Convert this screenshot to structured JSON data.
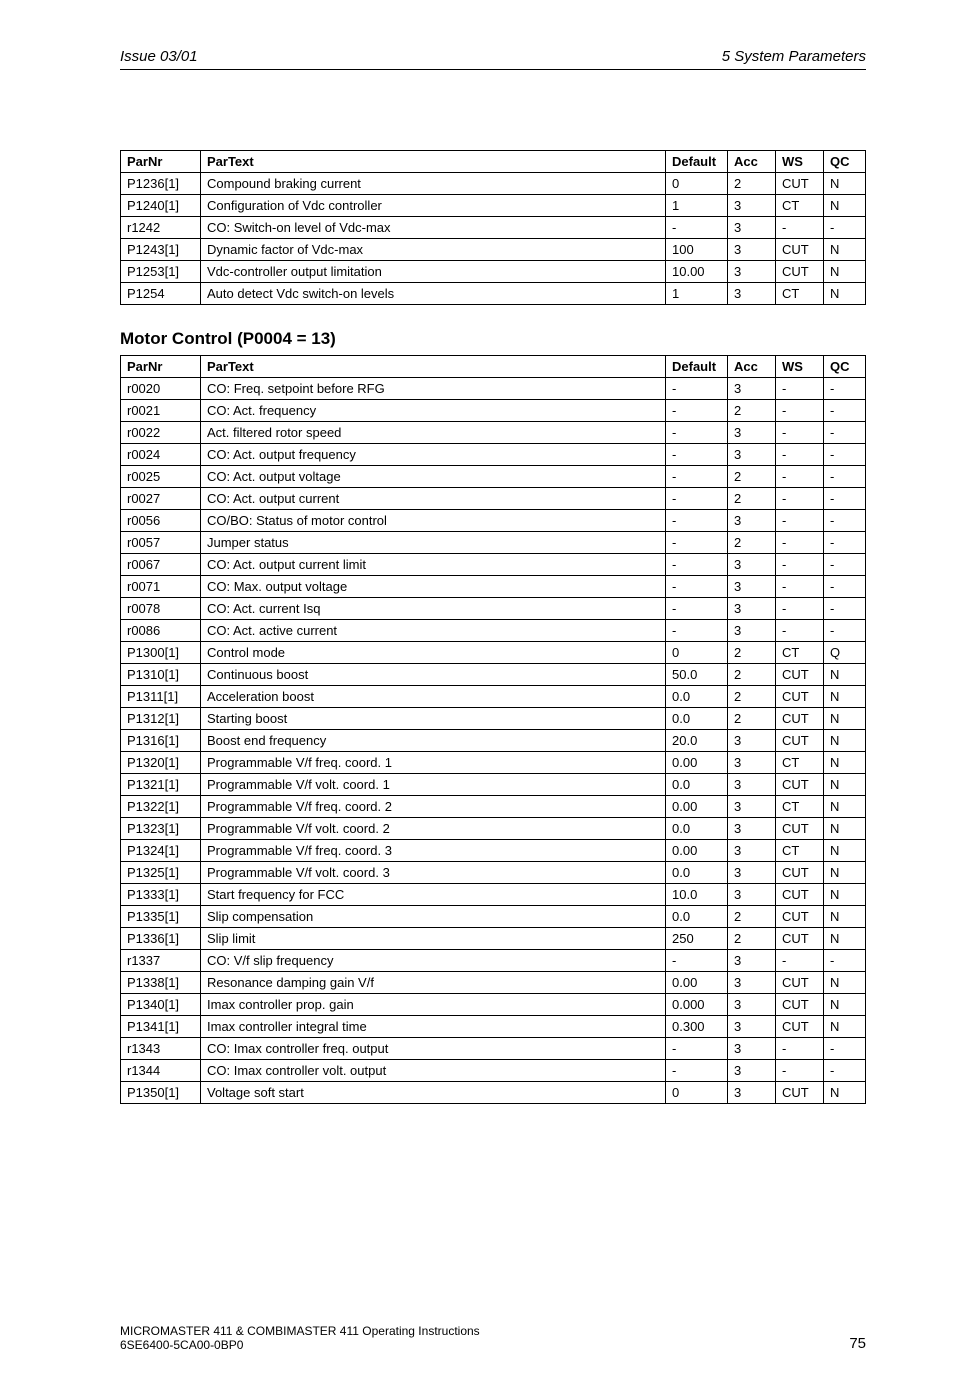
{
  "header": {
    "left": "Issue 03/01",
    "right": "5  System Parameters"
  },
  "table1": {
    "columns": [
      "ParNr",
      "ParText",
      "Default",
      "Acc",
      "WS",
      "QC"
    ],
    "rows": [
      [
        "P1236[1]",
        "Compound braking current",
        "0",
        "2",
        "CUT",
        "N"
      ],
      [
        "P1240[1]",
        "Configuration of Vdc controller",
        "1",
        "3",
        "CT",
        "N"
      ],
      [
        "r1242",
        "CO: Switch-on level of Vdc-max",
        "-",
        "3",
        "-",
        "-"
      ],
      [
        "P1243[1]",
        "Dynamic factor of Vdc-max",
        "100",
        "3",
        "CUT",
        "N"
      ],
      [
        "P1253[1]",
        "Vdc-controller output limitation",
        "10.00",
        "3",
        "CUT",
        "N"
      ],
      [
        "P1254",
        "Auto detect Vdc switch-on levels",
        "1",
        "3",
        "CT",
        "N"
      ]
    ]
  },
  "section2_title": "Motor Control (P0004 = 13)",
  "table2": {
    "columns": [
      "ParNr",
      "ParText",
      "Default",
      "Acc",
      "WS",
      "QC"
    ],
    "rows": [
      [
        "r0020",
        "CO: Freq. setpoint before RFG",
        "-",
        "3",
        "-",
        "-"
      ],
      [
        "r0021",
        "CO: Act. frequency",
        "-",
        "2",
        "-",
        "-"
      ],
      [
        "r0022",
        "Act. filtered rotor speed",
        "-",
        "3",
        "-",
        "-"
      ],
      [
        "r0024",
        "CO: Act. output frequency",
        "-",
        "3",
        "-",
        "-"
      ],
      [
        "r0025",
        "CO: Act. output voltage",
        "-",
        "2",
        "-",
        "-"
      ],
      [
        "r0027",
        "CO: Act. output current",
        "-",
        "2",
        "-",
        "-"
      ],
      [
        "r0056",
        "CO/BO: Status of motor control",
        "-",
        "3",
        "-",
        "-"
      ],
      [
        "r0057",
        "Jumper status",
        "-",
        "2",
        "-",
        "-"
      ],
      [
        "r0067",
        "CO: Act. output current limit",
        "-",
        "3",
        "-",
        "-"
      ],
      [
        "r0071",
        "CO: Max. output voltage",
        "-",
        "3",
        "-",
        "-"
      ],
      [
        "r0078",
        "CO: Act. current Isq",
        "-",
        "3",
        "-",
        "-"
      ],
      [
        "r0086",
        "CO: Act. active current",
        "-",
        "3",
        "-",
        "-"
      ],
      [
        "P1300[1]",
        "Control mode",
        "0",
        "2",
        "CT",
        "Q"
      ],
      [
        "P1310[1]",
        "Continuous boost",
        "50.0",
        "2",
        "CUT",
        "N"
      ],
      [
        "P1311[1]",
        "Acceleration boost",
        "0.0",
        "2",
        "CUT",
        "N"
      ],
      [
        "P1312[1]",
        "Starting boost",
        "0.0",
        "2",
        "CUT",
        "N"
      ],
      [
        "P1316[1]",
        "Boost end frequency",
        "20.0",
        "3",
        "CUT",
        "N"
      ],
      [
        "P1320[1]",
        "Programmable V/f freq. coord. 1",
        "0.00",
        "3",
        "CT",
        "N"
      ],
      [
        "P1321[1]",
        "Programmable V/f volt. coord. 1",
        "0.0",
        "3",
        "CUT",
        "N"
      ],
      [
        "P1322[1]",
        "Programmable V/f freq. coord. 2",
        "0.00",
        "3",
        "CT",
        "N"
      ],
      [
        "P1323[1]",
        "Programmable V/f volt. coord. 2",
        "0.0",
        "3",
        "CUT",
        "N"
      ],
      [
        "P1324[1]",
        "Programmable V/f freq. coord. 3",
        "0.00",
        "3",
        "CT",
        "N"
      ],
      [
        "P1325[1]",
        "Programmable V/f volt. coord. 3",
        "0.0",
        "3",
        "CUT",
        "N"
      ],
      [
        "P1333[1]",
        "Start frequency for FCC",
        "10.0",
        "3",
        "CUT",
        "N"
      ],
      [
        "P1335[1]",
        "Slip compensation",
        "0.0",
        "2",
        "CUT",
        "N"
      ],
      [
        "P1336[1]",
        "Slip limit",
        "250",
        "2",
        "CUT",
        "N"
      ],
      [
        "r1337",
        "CO: V/f slip frequency",
        "-",
        "3",
        "-",
        "-"
      ],
      [
        "P1338[1]",
        "Resonance damping gain V/f",
        "0.00",
        "3",
        "CUT",
        "N"
      ],
      [
        "P1340[1]",
        "Imax controller prop. gain",
        "0.000",
        "3",
        "CUT",
        "N"
      ],
      [
        "P1341[1]",
        "Imax controller integral time",
        "0.300",
        "3",
        "CUT",
        "N"
      ],
      [
        "r1343",
        "CO: Imax controller freq. output",
        "-",
        "3",
        "-",
        "-"
      ],
      [
        "r1344",
        "CO: Imax controller volt. output",
        "-",
        "3",
        "-",
        "-"
      ],
      [
        "P1350[1]",
        "Voltage soft start",
        "0",
        "3",
        "CUT",
        "N"
      ]
    ]
  },
  "footer": {
    "line1": "MICROMASTER 411 & COMBIMASTER 411    Operating Instructions",
    "line2": "6SE6400-5CA00-0BP0",
    "page": "75"
  }
}
